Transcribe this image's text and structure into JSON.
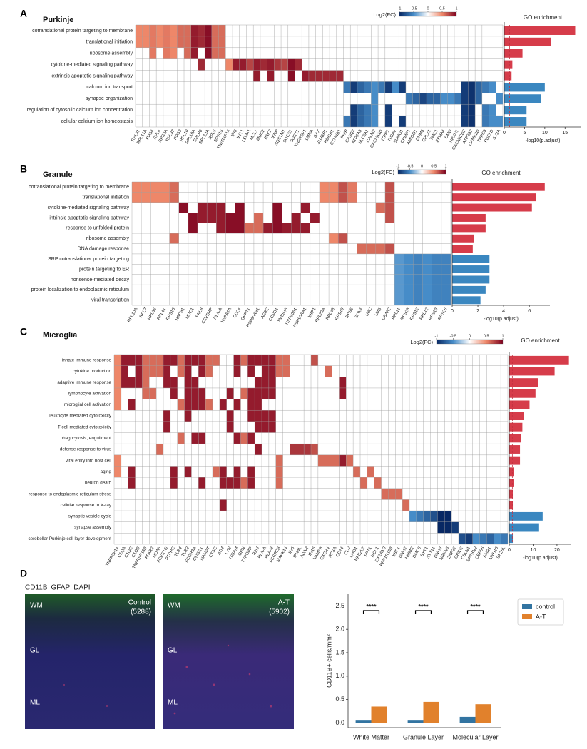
{
  "chart_data": [
    {
      "type": "heatmap",
      "panel": "A",
      "title": "Purkinje",
      "pathways": [
        "cotranslational protein targeting to membrane",
        "translational initiation",
        "ribosome assembly",
        "cytokine-mediated signaling pathway",
        "extrinsic apoptotic signaling pathway",
        "calcium ion transport",
        "synapse organization",
        "regulation of cytosolic calcium ion concentration",
        "cellular calcium ion homeostasis"
      ],
      "genes": [
        "RPL31",
        "RPL17A",
        "RPS4",
        "RPL4",
        "RPS3A",
        "RPL37",
        "RPS3",
        "RPL10",
        "RPL10A",
        "RPLP0",
        "RPL13A",
        "RPL5",
        "RPS15",
        "TNFRSF14",
        "IFI6",
        "IFIT1",
        "LEM41",
        "MCL1",
        "MUC2",
        "PAK2",
        "IFNR",
        "SQSTM1",
        "SOCS1",
        "SORT1",
        "TNFRSF1",
        "LMNA",
        "BAX",
        "SH3BP1",
        "HMGB1",
        "CTNNB1",
        "FHIP",
        "CASQ2",
        "ATP2A3",
        "SLC8A1",
        "CALM2",
        "CACNA1D",
        "ITPR1",
        "ITGAV",
        "SUMO1",
        "CHMP1",
        "AMIGO1",
        "DNM3",
        "CPLX1",
        "TMC1",
        "EPHA4",
        "DMD",
        "NRXN1",
        "CACNA2D2",
        "ATP2B2",
        "CAMK2D",
        "TRPC3",
        "PDE5D",
        "SV2A"
      ],
      "log2fc": [
        0.5,
        0.5,
        0.55,
        0.5,
        0.55,
        0.5,
        0.6,
        0.6,
        0.9,
        0.85,
        0.95,
        0.6,
        0.6,
        0.5,
        0.9,
        0.9,
        0.75,
        0.9,
        0.85,
        0.9,
        0.8,
        0.75,
        0.95,
        0.85,
        0.9,
        0.85,
        0.85,
        0.85,
        0.85,
        0.85,
        -0.6,
        -0.9,
        -0.7,
        -0.6,
        -0.5,
        -0.6,
        -0.9,
        -0.5,
        -0.9,
        -0.6,
        -0.7,
        -0.85,
        -0.7,
        -0.7,
        -0.5,
        -0.5,
        -0.6,
        -0.9,
        -0.95,
        -0.7,
        -0.6,
        -0.5,
        -0.5
      ],
      "members": [
        [
          "RPL31",
          "RPL17A",
          "RPS4",
          "RPL4",
          "RPS3A",
          "RPL37",
          "RPS3",
          "RPL10",
          "RPL10A",
          "RPLP0",
          "RPL13A",
          "RPL5",
          "RPS15"
        ],
        [
          "RPL31",
          "RPL17A",
          "RPS4",
          "RPL4",
          "RPS3A",
          "RPL37",
          "RPS3",
          "RPL10",
          "RPL10A",
          "RPLP0",
          "RPL13A",
          "RPL5",
          "RPS15"
        ],
        [
          "RPS4",
          "RPS3A",
          "RPL37",
          "RPL10",
          "RPL10A",
          "RPL13A",
          "RPL5",
          "RPS15"
        ],
        [
          "RPLP0",
          "TNFRSF14",
          "IFI6",
          "IFIT1",
          "LEM41",
          "MCL1",
          "MUC2",
          "PAK2",
          "IFNR",
          "SQSTM1",
          "SOCS1",
          "SORT1"
        ],
        [
          "MCL1",
          "PAK2",
          "SOCS1",
          "TNFRSF1",
          "LMNA",
          "BAX",
          "SH3BP1",
          "HMGB1",
          "CTNNB1"
        ],
        [
          "FHIP",
          "CASQ2",
          "ATP2A3",
          "SLC8A1",
          "CALM2",
          "CACNA1D",
          "ITPR1",
          "ITGAV",
          "SUMO1",
          "CACNA2D2",
          "ATP2B2",
          "CAMK2D",
          "TRPC3",
          "PDE5D"
        ],
        [
          "CALM2",
          "CHMP1",
          "AMIGO1",
          "DNM3",
          "CPLX1",
          "TMC1",
          "EPHA4",
          "DMD",
          "NRXN1",
          "CACNA2D2",
          "ATP2B2",
          "CAMK2D",
          "SV2A"
        ],
        [
          "CASQ2",
          "ATP2A3",
          "SLC8A1",
          "CALM2",
          "ITPR1",
          "CACNA2D2",
          "ATP2B2",
          "TRPC3",
          "PDE5D"
        ],
        [
          "FHIP",
          "CASQ2",
          "ATP2A3",
          "SLC8A1",
          "CALM2",
          "ITPR1",
          "SUMO1",
          "CACNA2D2",
          "ATP2B2",
          "TRPC3",
          "PDE5D",
          "SV2A"
        ]
      ],
      "colorbar": {
        "label": "Log2(FC)",
        "clim": [
          -1,
          1
        ],
        "ticks": [
          -1,
          -0.5,
          0,
          0.5,
          1
        ]
      },
      "go": {
        "title": "GO enrichment",
        "xlabel": "-log10(p.adjust)",
        "values": [
          17.5,
          11.5,
          4.5,
          2,
          1.8,
          10,
          9,
          5.5,
          5.5
        ],
        "colors": [
          "#d63c4a",
          "#d63c4a",
          "#d63c4a",
          "#d63c4a",
          "#d63c4a",
          "#3a87c0",
          "#3a87c0",
          "#3a87c0",
          "#3a87c0"
        ],
        "xlim": [
          0,
          19
        ],
        "xticks": [
          0,
          5,
          10,
          15
        ],
        "threshold": 1.3
      }
    },
    {
      "type": "heatmap",
      "panel": "B",
      "title": "Granule",
      "pathways": [
        "cotranslational protein targeting to membrane",
        "translational initiation",
        "cytokine-mediated signaling pathway",
        "intrinsic apoptotic signaling pathway",
        "response to unfolded protein",
        "ribosome assembly",
        "DNA damage response",
        "SRP cotranslational protein targeting",
        "protein targeting to ER",
        "nonsense-mediated decay",
        "protein localization to endoplasmic reticulum",
        "viral transcription"
      ],
      "genes": [
        "RPL10A",
        "RPL7",
        "RPL35",
        "RPL41",
        "RPS10",
        "HSPB1",
        "MUC1",
        "PRL8",
        "CREBBP",
        "HLA-A",
        "HSPA1A",
        "CD24",
        "GFPT1",
        "HSP90AB1",
        "AGR2",
        "CCND1",
        "TMBIM6",
        "HSP90B1",
        "HSP90AA1",
        "XBP1",
        "RPL23A",
        "RPL38",
        "RPS19",
        "RPS5",
        "SOX4",
        "UBC",
        "UBB",
        "UBA52",
        "RPL11",
        "RPS23",
        "RPS12",
        "RPL12",
        "RPS13",
        "RPS26"
      ],
      "log2fc": [
        0.5,
        0.5,
        0.5,
        0.5,
        0.6,
        0.95,
        0.95,
        0.9,
        0.9,
        0.9,
        0.95,
        0.95,
        0.6,
        0.6,
        0.9,
        0.95,
        0.9,
        0.9,
        0.9,
        0.9,
        0.5,
        0.5,
        0.7,
        0.55,
        0.6,
        0.6,
        0.6,
        0.7,
        -0.45,
        -0.5,
        -0.55,
        -0.5,
        -0.55,
        -0.55
      ],
      "members": [
        [
          "RPL10A",
          "RPL7",
          "RPL35",
          "RPL41",
          "RPS10",
          "RPL23A",
          "RPL38",
          "RPS19",
          "RPS5",
          "UBA52"
        ],
        [
          "RPL10A",
          "RPL7",
          "RPL35",
          "RPL41",
          "RPS10",
          "RPL23A",
          "RPL38",
          "RPS19",
          "RPS5",
          "UBA52"
        ],
        [
          "HSPB1",
          "PRL8",
          "CREBBP",
          "HLA-A",
          "CD24",
          "CCND1",
          "HSP90AA1",
          "UBB",
          "UBA52"
        ],
        [
          "MUC1",
          "PRL8",
          "CREBBP",
          "HLA-A",
          "HSPA1A",
          "CD24",
          "HSP90AB1",
          "CCND1",
          "HSP90B1",
          "XBP1",
          "UBA52"
        ],
        [
          "MUC1",
          "HLA-A",
          "HSPA1A",
          "CD24",
          "GFPT1",
          "HSP90AB1",
          "AGR2",
          "CCND1",
          "TMBIM6",
          "HSP90B1",
          "HSP90AA1"
        ],
        [
          "RPS10",
          "RPL38",
          "RPS19"
        ],
        [
          "SOX4",
          "UBC",
          "UBB",
          "UBA52"
        ],
        [
          "RPL11",
          "RPS23",
          "RPS12",
          "RPL12",
          "RPS13",
          "RPS26"
        ],
        [
          "RPL11",
          "RPS23",
          "RPS12",
          "RPL12",
          "RPS13",
          "RPS26"
        ],
        [
          "RPL11",
          "RPS23",
          "RPS12",
          "RPL12",
          "RPS13",
          "RPS26"
        ],
        [
          "RPL11",
          "RPS23",
          "RPS12",
          "RPL12",
          "RPS13",
          "RPS26"
        ],
        [
          "RPL11",
          "RPS23",
          "RPS12",
          "RPL12",
          "RPS13",
          "RPS26"
        ]
      ],
      "colorbar": {
        "label": "Log2(FC)",
        "clim": [
          -1,
          1
        ],
        "ticks": [
          -1,
          -0.5,
          0,
          0.5,
          1
        ]
      },
      "go": {
        "title": "GO enrichment",
        "xlabel": "-log10(p.adjust)",
        "values": [
          7.2,
          6.5,
          6.2,
          2.6,
          2.6,
          1.7,
          1.6,
          2.9,
          2.9,
          2.9,
          2.6,
          2.2
        ],
        "colors": [
          "#d63c4a",
          "#d63c4a",
          "#d63c4a",
          "#d63c4a",
          "#d63c4a",
          "#d63c4a",
          "#d63c4a",
          "#3a87c0",
          "#3a87c0",
          "#3a87c0",
          "#3a87c0",
          "#3a87c0"
        ],
        "xlim": [
          0,
          7.6
        ],
        "xticks": [
          0,
          2,
          4,
          6
        ],
        "threshold": 1.3
      }
    },
    {
      "type": "heatmap",
      "panel": "C",
      "title": "Microglia",
      "pathways": [
        "innate immune response",
        "cytokine production",
        "adaptive immune response",
        "lymphocyte activation",
        "microglial cell activation",
        "leukocyte mediated cytotoxicity",
        "T cell mediated cytotoxicity",
        "phagocytosis, engulfment",
        "defense response to virus",
        "viral entry into host cell",
        "aging",
        "neuron death",
        "response to endoplasmic reticulum stress",
        "cellular response to X-ray",
        "synaptic vesicle cycle",
        "synapse assembly",
        "cerebellar Purkinje cell layer development"
      ],
      "genes": [
        "TNFRSF14",
        "C1QA",
        "C1QC",
        "C1QB",
        "TNFRSF13B",
        "FFAR2",
        "MDA5",
        "FCER1G",
        "PTPRC",
        "TLR4",
        "TLR2",
        "FCGR3A",
        "IFNGR1",
        "NAMPT",
        "CTSC",
        "ATM",
        "LYN",
        "ITGAM",
        "GRN",
        "TYROBP",
        "B2M",
        "HLA-A",
        "HLA-B",
        "FCGR2B",
        "MAPK14",
        "IFI6",
        "IFI44L",
        "ADAR",
        "IFI16",
        "VAMP8",
        "CXCR4",
        "RPSA",
        "CD74",
        "CLU",
        "LMO1",
        "NFE2L2",
        "PPT1",
        "MCL1",
        "EIF2AK3",
        "PPP1R15B",
        "XBP1",
        "DNM2",
        "HMMR",
        "DMC6",
        "SYT1",
        "SYT11",
        "DNM3",
        "NRXN3",
        "ZNF22",
        "GRID2",
        "CBLN1",
        "SPTBN2",
        "CEP85",
        "FMR1",
        "MYH10",
        "SEZ6L"
      ],
      "log2fc": [
        0.5,
        0.9,
        0.9,
        0.9,
        0.6,
        0.6,
        0.6,
        0.9,
        0.9,
        0.6,
        0.9,
        0.9,
        0.9,
        0.6,
        0.6,
        0.9,
        0.9,
        0.9,
        0.6,
        0.9,
        0.9,
        0.9,
        0.9,
        0.6,
        0.6,
        0.8,
        0.8,
        0.8,
        0.7,
        0.6,
        0.6,
        0.6,
        0.9,
        0.6,
        0.6,
        0.6,
        0.6,
        0.6,
        0.6,
        0.6,
        0.6,
        0.6,
        -0.5,
        -0.6,
        -0.7,
        -0.8,
        -1,
        -1,
        -0.9,
        -0.8,
        -0.9,
        -0.5,
        -0.6,
        -0.7,
        -0.5,
        -0.6
      ],
      "members": [
        [
          "TNFRSF14",
          "C1QA",
          "C1QC",
          "C1QB",
          "TNFRSF13B",
          "FFAR2",
          "MDA5",
          "FCER1G",
          "PTPRC",
          "TLR4",
          "TLR2",
          "FCGR3A",
          "IFNGR1",
          "NAMPT",
          "CTSC",
          "ITGAM",
          "GRN",
          "TYROBP",
          "B2M",
          "HLA-A",
          "HLA-B",
          "FCGR2B",
          "MAPK14",
          "IFI16"
        ],
        [
          "TNFRSF14",
          "C1QA",
          "C1QB",
          "TNFRSF13B",
          "FFAR2",
          "MDA5",
          "FCER1G",
          "TLR4",
          "TLR2",
          "IFNGR1",
          "NAMPT",
          "ITGAM",
          "TYROBP",
          "HLA-A",
          "HLA-B",
          "FCGR2B",
          "MAPK14",
          "CXCR4"
        ],
        [
          "TNFRSF14",
          "C1QA",
          "C1QC",
          "C1QB",
          "TNFRSF13B",
          "FCER1G",
          "PTPRC",
          "TLR2",
          "FCGR3A",
          "B2M",
          "HLA-A",
          "HLA-B",
          "CD74"
        ],
        [
          "TNFRSF14",
          "TNFRSF13B",
          "FFAR2",
          "PTPRC",
          "TLR2",
          "FCGR3A",
          "IFNGR1",
          "LYN",
          "GRN",
          "TYROBP",
          "B2M",
          "HLA-A",
          "HLA-B",
          "CD74"
        ],
        [
          "TNFRSF14",
          "C1QC",
          "TLR4",
          "TLR2",
          "FCGR3A",
          "IFNGR1",
          "NAMPT",
          "ATM",
          "ITGAM",
          "TYROBP",
          "B2M"
        ],
        [
          "FCER1G",
          "TLR2",
          "LYN",
          "TYROBP",
          "B2M",
          "HLA-A",
          "HLA-B"
        ],
        [
          "FCER1G",
          "LYN",
          "B2M",
          "HLA-A",
          "HLA-B"
        ],
        [
          "TLR4",
          "FCGR3A",
          "IFNGR1",
          "ITGAM",
          "GRN",
          "TYROBP"
        ],
        [
          "MDA5",
          "B2M",
          "IFI6",
          "IFI44L",
          "ADAR",
          "IFI16"
        ],
        [
          "TNFRSF14",
          "FCGR2B",
          "VAMP8",
          "CXCR4",
          "RPSA",
          "CD74",
          "CLU"
        ],
        [
          "TNFRSF14",
          "C1QC",
          "PTPRC",
          "TLR2",
          "CTSC",
          "ATM",
          "ITGAM",
          "TYROBP",
          "FCGR2B",
          "LMO1",
          "PPT1"
        ],
        [
          "C1QC",
          "PTPRC",
          "IFNGR1",
          "ATM",
          "LYN",
          "ITGAM",
          "GRN",
          "TYROBP",
          "FCGR2B",
          "NFE2L2",
          "MCL1"
        ],
        [
          "EIF2AK3",
          "PPP1R15B",
          "XBP1"
        ],
        [
          "ATM",
          "DNM2"
        ],
        [
          "HMMR",
          "DMC6",
          "SYT1",
          "SYT11",
          "DNM3",
          "NRXN3"
        ],
        [
          "DNM3",
          "NRXN3",
          "ZNF22"
        ],
        [
          "GRID2",
          "CBLN1",
          "SPTBN2",
          "CEP85",
          "FMR1",
          "MYH10",
          "SEZ6L"
        ]
      ],
      "colorbar": {
        "label": "Log2(FC)",
        "clim": [
          -1,
          1
        ],
        "ticks": [
          -1,
          -0.5,
          0,
          0.5,
          1
        ]
      },
      "go": {
        "title": "GO enrichment",
        "xlabel": "-log10(p.adjust)",
        "values": [
          25,
          19,
          12,
          11,
          8.5,
          6,
          5.5,
          5,
          4.5,
          4.5,
          2,
          1.8,
          1.5,
          1.5,
          14,
          12.5,
          1.5
        ],
        "colors": [
          "#d63c4a",
          "#d63c4a",
          "#d63c4a",
          "#d63c4a",
          "#d63c4a",
          "#d63c4a",
          "#d63c4a",
          "#d63c4a",
          "#d63c4a",
          "#d63c4a",
          "#d63c4a",
          "#d63c4a",
          "#d63c4a",
          "#d63c4a",
          "#3a87c0",
          "#3a87c0",
          "#3a87c0"
        ],
        "xlim": [
          0,
          26
        ],
        "xticks": [
          0,
          10,
          20
        ],
        "threshold": 1.3
      }
    },
    {
      "type": "bar",
      "panel": "D",
      "stains": [
        {
          "name": "CD11B",
          "color": "#e03030"
        },
        {
          "name": "GFAP",
          "color": "#20b040"
        },
        {
          "name": "DAPI",
          "color": "#3040c0"
        }
      ],
      "images": [
        {
          "label": "Control",
          "count": "(5288)"
        },
        {
          "label": "A-T",
          "count": "(5902)"
        }
      ],
      "regions": [
        "WM",
        "GL",
        "ML"
      ],
      "ylabel": "CD11B+ cells/mm²",
      "categories": [
        "White Matter",
        "Granule Layer",
        "Molecular Layer"
      ],
      "series": [
        {
          "name": "control",
          "color": "#3274a1",
          "values": [
            0.05,
            0.05,
            0.13
          ]
        },
        {
          "name": "A-T",
          "color": "#e1812c",
          "values": [
            0.35,
            0.45,
            0.4
          ]
        }
      ],
      "significance": [
        "****",
        "****",
        "****"
      ],
      "ylim": [
        -0.1,
        2.75
      ],
      "yticks": [
        {
          "value": 0,
          "label": "0.0"
        },
        {
          "value": 0.5,
          "label": "0.5"
        },
        {
          "value": 1,
          "label": "1.0"
        },
        {
          "value": 1.5,
          "label": "1.5"
        },
        {
          "value": 2,
          "label": "2.0"
        },
        {
          "value": 2.5,
          "label": "2.5"
        }
      ],
      "legend": "upper right"
    }
  ]
}
